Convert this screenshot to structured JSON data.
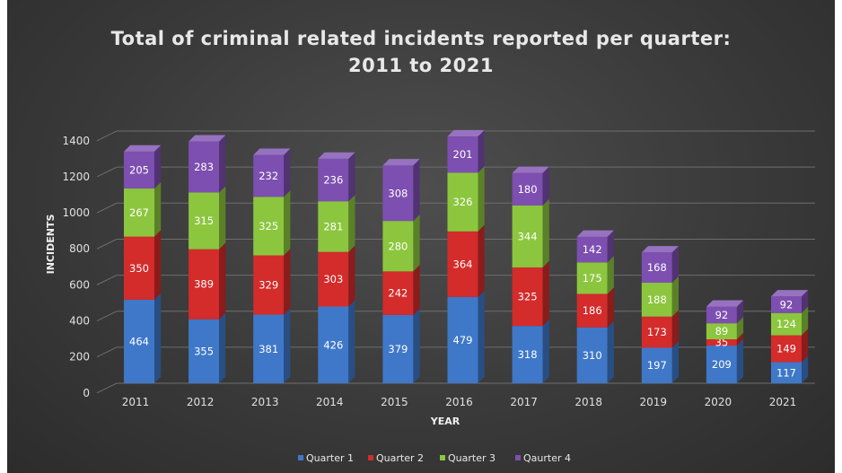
{
  "chart_data": {
    "type": "bar",
    "stacked": true,
    "title_line1": "Total of criminal related incidents reported per quarter:",
    "title_line2": "2011 to 2021",
    "xlabel": "YEAR",
    "ylabel": "INCIDENTS",
    "categories": [
      "2011",
      "2012",
      "2013",
      "2014",
      "2015",
      "2016",
      "2017",
      "2018",
      "2019",
      "2020",
      "2021"
    ],
    "ylim": [
      0,
      1400
    ],
    "yticks": [
      0,
      200,
      400,
      600,
      800,
      1000,
      1200,
      1400
    ],
    "grid": true,
    "legend_position": "bottom",
    "series": [
      {
        "name": "Quarter 1",
        "color": "#3f78c9",
        "values": [
          464,
          355,
          381,
          426,
          379,
          479,
          318,
          310,
          197,
          209,
          117
        ]
      },
      {
        "name": "Quarter 2",
        "color": "#d42b2b",
        "values": [
          350,
          389,
          329,
          303,
          242,
          364,
          325,
          186,
          173,
          35,
          149
        ]
      },
      {
        "name": "Quarter 3",
        "color": "#8cc63e",
        "values": [
          267,
          315,
          325,
          281,
          280,
          326,
          344,
          175,
          188,
          89,
          124
        ]
      },
      {
        "name": "Qaurter 4",
        "color": "#7d4fb0",
        "values": [
          205,
          283,
          232,
          236,
          308,
          201,
          180,
          142,
          168,
          92,
          92
        ]
      }
    ]
  }
}
